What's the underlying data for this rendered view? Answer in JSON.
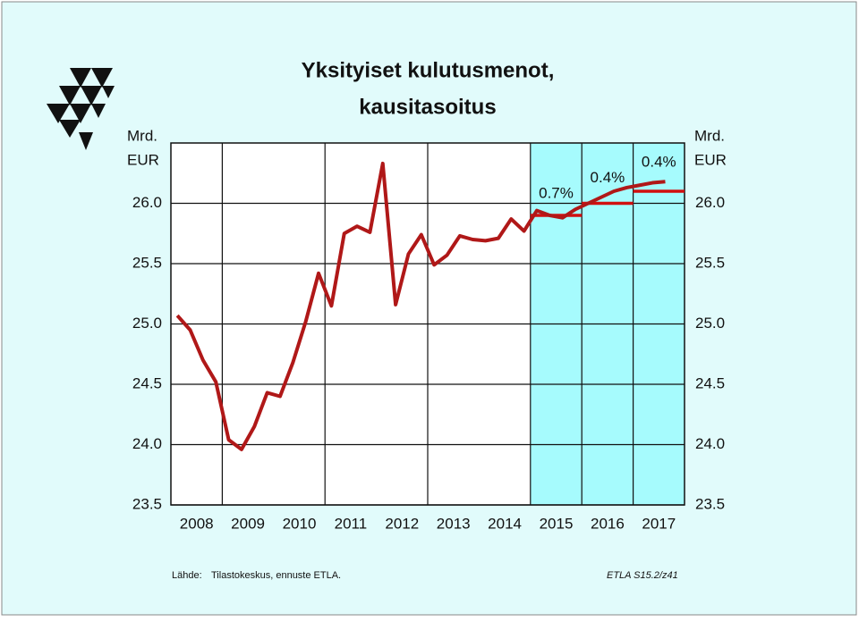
{
  "chart_data": {
    "type": "line",
    "title": [
      "Yksityiset kulutusmenot,",
      "kausitasoitus"
    ],
    "y_axis_label": [
      "Mrd.",
      "EUR"
    ],
    "x": [
      2008.125,
      2008.375,
      2008.625,
      2008.875,
      2009.125,
      2009.375,
      2009.625,
      2009.875,
      2010.125,
      2010.375,
      2010.625,
      2010.875,
      2011.125,
      2011.375,
      2011.625,
      2011.875,
      2012.125,
      2012.375,
      2012.625,
      2012.875,
      2013.125,
      2013.375,
      2013.625,
      2013.875,
      2014.125,
      2014.375,
      2014.625,
      2014.875,
      2015.125,
      2015.375,
      2015.625,
      2015.875,
      2016.125,
      2016.375,
      2016.625,
      2016.875,
      2017.125,
      2017.375,
      2017.625
    ],
    "series": [
      {
        "color": "#b01818",
        "values": [
          25.07,
          24.95,
          24.7,
          24.52,
          24.04,
          23.96,
          24.15,
          24.43,
          24.4,
          24.68,
          25.02,
          25.42,
          25.15,
          25.75,
          25.81,
          25.76,
          26.33,
          25.16,
          25.58,
          25.74,
          25.49,
          25.57,
          25.73,
          25.7,
          25.69,
          25.71,
          25.87,
          25.77,
          25.94,
          25.9,
          25.88,
          25.95,
          26.0,
          26.05,
          26.1,
          26.13,
          26.15,
          26.17,
          26.18
        ]
      }
    ],
    "annual_forecast": {
      "color": "#d01010",
      "x": [
        2015,
        2016,
        2017
      ],
      "values": [
        25.9,
        26.0,
        26.1
      ],
      "growth_labels": [
        "0.7%",
        "0.4%",
        "0.4%"
      ]
    },
    "forecast_start": 2015,
    "forecast_color": "#a6fbfd",
    "xlim": [
      2008,
      2018
    ],
    "xticks": [
      {
        "value": 2008.5,
        "label": "2008"
      },
      {
        "value": 2009.5,
        "label": "2009"
      },
      {
        "value": 2010.5,
        "label": "2010"
      },
      {
        "value": 2011.5,
        "label": "2011"
      },
      {
        "value": 2012.5,
        "label": "2012"
      },
      {
        "value": 2013.5,
        "label": "2013"
      },
      {
        "value": 2014.5,
        "label": "2014"
      },
      {
        "value": 2015.5,
        "label": "2015"
      },
      {
        "value": 2016.5,
        "label": "2016"
      },
      {
        "value": 2017.5,
        "label": "2017"
      }
    ],
    "xgrid": [
      2009,
      2011,
      2013,
      2015,
      2016,
      2017
    ],
    "ylim": [
      23.5,
      26.5
    ],
    "yticks": [
      {
        "value": 23.5,
        "label": "23.5"
      },
      {
        "value": 24.0,
        "label": "24.0"
      },
      {
        "value": 24.5,
        "label": "24.5"
      },
      {
        "value": 25.0,
        "label": "25.0"
      },
      {
        "value": 25.5,
        "label": "25.5"
      },
      {
        "value": 26.0,
        "label": "26.0"
      }
    ],
    "grid": true,
    "source_label": "Lähde:",
    "source": "Tilastokeskus, ennuste ETLA.",
    "code": "ETLA S15.2/z41"
  }
}
